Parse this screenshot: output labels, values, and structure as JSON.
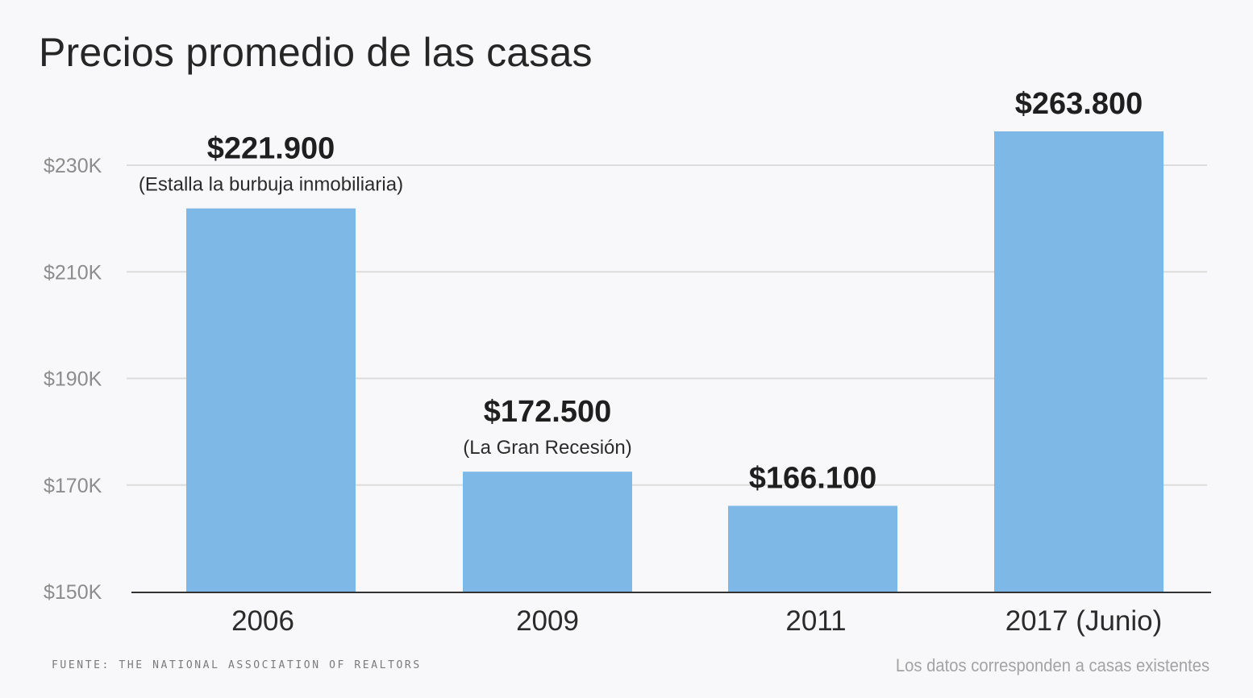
{
  "title": "Precios promedio de las casas",
  "source": "FUENTE: THE NATIONAL ASSOCIATION OF REALTORS",
  "footnote": "Los datos corresponden a casas existentes",
  "colors": {
    "bar": "#7eb8e6",
    "grid": "#dcdcdc",
    "axis": "#333333",
    "background": "#f8f8fa"
  },
  "chart_data": {
    "type": "bar",
    "categories": [
      "2006",
      "2009",
      "2011",
      "2017 (Junio)"
    ],
    "values": [
      221900,
      172500,
      166100,
      263800
    ],
    "value_labels": [
      "$221.900",
      "$172.500",
      "$166.100",
      "$263.800"
    ],
    "annotations": [
      "(Estalla la burbuja inmobiliaria)",
      "(La Gran Recesión)",
      "",
      ""
    ],
    "yticks": [
      150000,
      170000,
      190000,
      210000,
      230000
    ],
    "ytick_labels": [
      "$150K",
      "$170K",
      "$190K",
      "$210K",
      "$230K"
    ],
    "ylim": [
      150000,
      230000
    ],
    "grid": true,
    "legend": "none",
    "title": "Precios promedio de las casas",
    "xlabel": "",
    "ylabel": ""
  }
}
